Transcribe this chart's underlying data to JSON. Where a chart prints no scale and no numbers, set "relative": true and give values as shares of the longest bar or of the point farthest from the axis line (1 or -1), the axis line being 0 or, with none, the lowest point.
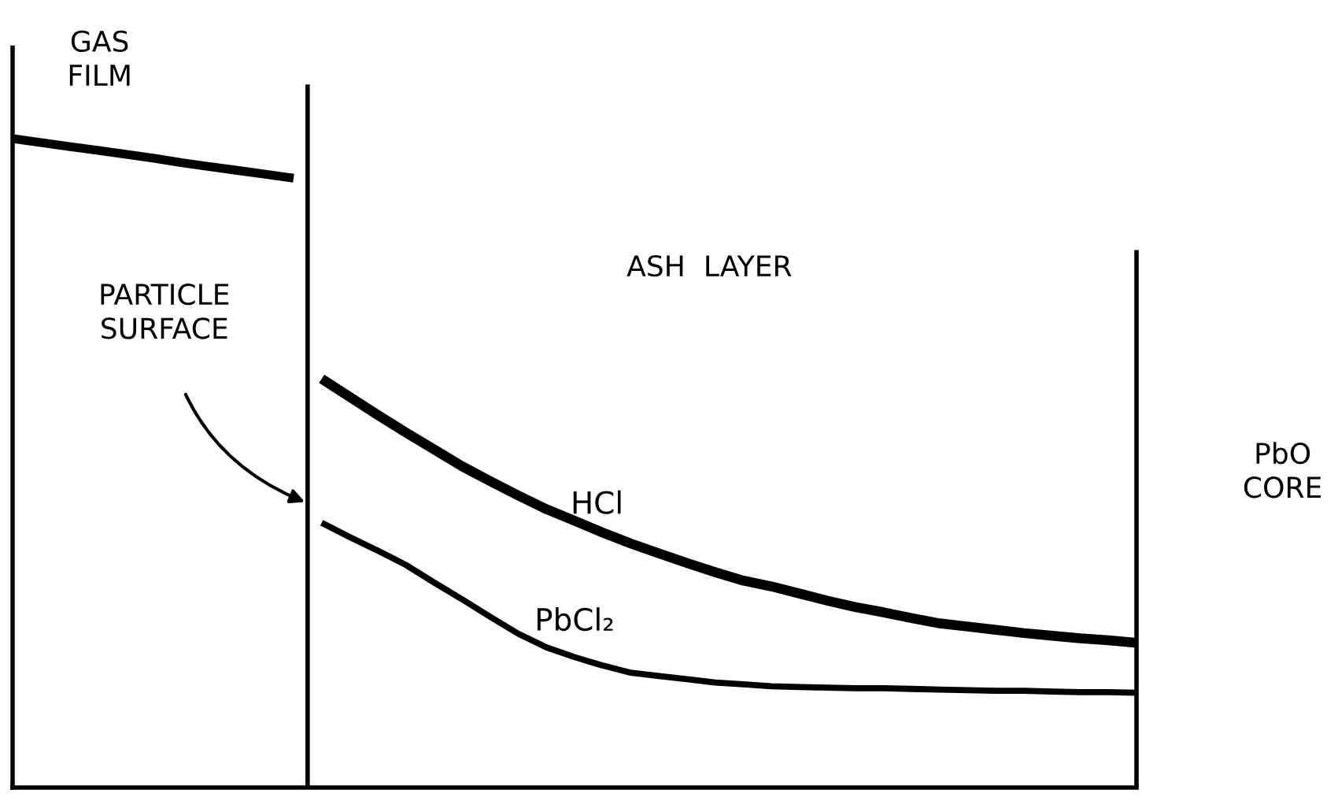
{
  "chart_data": {
    "type": "line",
    "relative": true,
    "legend": false,
    "marker": "none",
    "line_style": "solid",
    "categories": [
      null,
      null,
      null,
      null,
      null,
      null,
      null,
      null,
      null,
      null,
      null,
      null,
      null,
      null,
      null,
      null,
      null,
      null,
      null,
      null,
      null,
      null,
      null,
      null,
      null,
      null,
      null,
      null,
      null,
      null,
      null,
      null,
      null,
      null,
      null,
      null,
      null,
      null,
      null,
      null,
      null
    ],
    "series": [
      {
        "color": "#000000",
        "values": [
          1.0,
          0.994,
          0.988,
          0.982,
          0.976,
          0.97,
          0.963,
          0.957,
          0.951,
          0.945,
          0.939,
          null,
          null,
          null,
          null,
          null,
          null,
          null,
          null,
          null,
          null,
          null,
          null,
          null,
          null,
          null,
          null,
          null,
          null,
          null,
          null,
          null,
          null,
          null,
          null,
          null,
          null,
          null,
          null,
          null,
          null
        ]
      },
      {
        "name": "HCl",
        "color": "#000000",
        "values": [
          null,
          null,
          null,
          null,
          null,
          null,
          null,
          null,
          null,
          null,
          null,
          0.63,
          0.602,
          0.574,
          0.547,
          0.521,
          0.495,
          0.472,
          0.45,
          0.429,
          0.411,
          0.393,
          0.376,
          0.361,
          0.346,
          0.332,
          0.319,
          0.31,
          0.299,
          0.288,
          0.278,
          0.27,
          0.261,
          0.253,
          0.248,
          0.243,
          0.238,
          0.234,
          0.23,
          0.227,
          0.223
        ]
      },
      {
        "name": "PbCl₂",
        "color": "#000000",
        "values": [
          null,
          null,
          null,
          null,
          null,
          null,
          null,
          null,
          null,
          null,
          null,
          0.408,
          0.386,
          0.365,
          0.343,
          0.316,
          0.29,
          0.263,
          0.237,
          0.216,
          0.201,
          0.188,
          0.177,
          0.172,
          0.167,
          0.162,
          0.159,
          0.156,
          0.155,
          0.154,
          0.153,
          0.153,
          0.152,
          0.151,
          0.15,
          0.149,
          0.149,
          0.148,
          0.147,
          0.147,
          0.146
        ]
      }
    ],
    "annotations": [
      "GAS\nFILM",
      "ASH  LAYER",
      "PbO\nCORE",
      "PARTICLE\nSURFACE"
    ]
  }
}
